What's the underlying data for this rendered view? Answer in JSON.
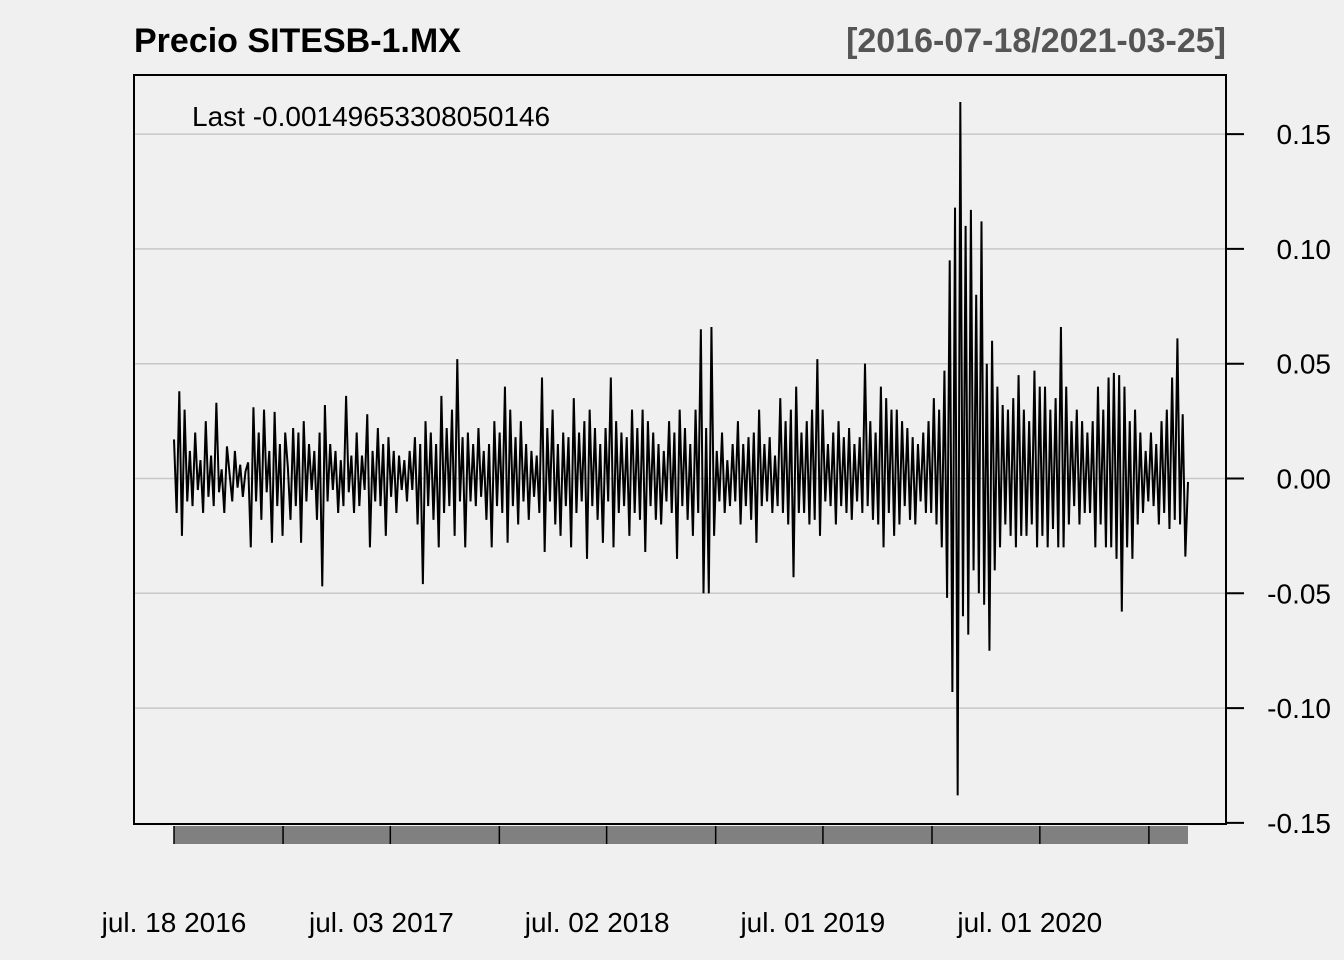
{
  "chart_data": {
    "type": "line",
    "title": "Precio SITESB-1.MX",
    "date_range_label": "[2016-07-18/2021-03-25]",
    "legend_text": "Last -0.00149653308050146",
    "last_value": -0.00149653308050146,
    "x_start": "2016-07-18",
    "x_end": "2021-03-25",
    "x_tick_labels": [
      "jul. 18 2016",
      "jul. 03 2017",
      "jul. 02 2018",
      "jul. 01 2019",
      "jul. 01 2020"
    ],
    "x_tick_dates": [
      "2016-07-18",
      "2017-07-03",
      "2018-07-02",
      "2019-07-01",
      "2020-07-01"
    ],
    "y_ticks": [
      0.15,
      0.1,
      0.05,
      0.0,
      -0.05,
      -0.1,
      -0.15
    ],
    "y_tick_labels": [
      "0.15",
      "0.10",
      "0.05",
      "0.00",
      "-0.05",
      "-0.10",
      "-0.15"
    ],
    "ylim": [
      -0.15,
      0.165
    ],
    "grid": true,
    "grid_color": "#c8c8c8",
    "line_color": "#000000",
    "title_color": "#000000",
    "range_label_color": "#555555",
    "band_color": "#808080",
    "series": [
      {
        "values": [
          0.017,
          -0.015,
          0.038,
          -0.025,
          0.03,
          -0.01,
          0.012,
          -0.012,
          0.02,
          -0.005,
          0.008,
          -0.015,
          0.025,
          -0.008,
          0.01,
          -0.012,
          0.033,
          -0.006,
          0.004,
          -0.015,
          0.014,
          0.002,
          -0.01,
          0.012,
          -0.004,
          0.006,
          -0.008,
          0.003,
          0.007,
          -0.03,
          0.031,
          -0.01,
          0.02,
          -0.018,
          0.03,
          -0.006,
          0.012,
          -0.028,
          0.029,
          -0.012,
          0.015,
          -0.025,
          0.02,
          0.005,
          -0.018,
          0.022,
          -0.012,
          0.02,
          -0.028,
          0.025,
          -0.01,
          0.015,
          -0.005,
          0.012,
          -0.018,
          0.02,
          -0.047,
          0.032,
          -0.01,
          0.015,
          -0.005,
          0.012,
          -0.015,
          0.008,
          -0.012,
          0.036,
          -0.006,
          0.01,
          -0.015,
          0.02,
          -0.012,
          0.01,
          -0.005,
          0.028,
          -0.03,
          0.012,
          -0.01,
          0.022,
          -0.012,
          0.015,
          -0.025,
          0.018,
          -0.008,
          0.012,
          -0.015,
          0.01,
          -0.005,
          0.008,
          -0.01,
          0.012,
          -0.005,
          0.018,
          -0.02,
          0.015,
          -0.046,
          0.025,
          -0.012,
          0.02,
          -0.018,
          0.015,
          -0.03,
          0.036,
          -0.015,
          0.022,
          -0.012,
          0.03,
          -0.025,
          0.052,
          -0.01,
          0.018,
          -0.03,
          0.02,
          -0.01,
          0.015,
          -0.012,
          0.022,
          -0.008,
          0.012,
          -0.018,
          0.015,
          -0.03,
          0.025,
          -0.012,
          0.02,
          -0.015,
          0.04,
          -0.028,
          0.03,
          -0.012,
          0.018,
          -0.02,
          0.025,
          -0.01,
          0.015,
          -0.018,
          0.012,
          -0.008,
          0.01,
          -0.015,
          0.044,
          -0.032,
          0.022,
          -0.01,
          0.03,
          -0.02,
          0.015,
          -0.025,
          0.02,
          -0.012,
          0.018,
          -0.03,
          0.035,
          -0.015,
          0.02,
          -0.01,
          0.025,
          -0.035,
          0.03,
          -0.012,
          0.022,
          -0.018,
          0.015,
          -0.028,
          0.022,
          -0.01,
          0.044,
          -0.03,
          0.025,
          -0.015,
          0.02,
          -0.012,
          0.018,
          -0.025,
          0.03,
          -0.015,
          0.022,
          -0.018,
          0.03,
          -0.032,
          0.025,
          -0.012,
          0.02,
          -0.018,
          0.015,
          -0.02,
          0.012,
          -0.01,
          0.025,
          -0.015,
          0.02,
          -0.035,
          0.03,
          -0.012,
          0.022,
          -0.018,
          0.015,
          -0.025,
          0.03,
          -0.015,
          0.065,
          -0.05,
          0.022,
          -0.05,
          0.066,
          -0.025,
          0.012,
          -0.01,
          0.02,
          -0.015,
          0.008,
          -0.012,
          0.015,
          -0.01,
          0.025,
          -0.02,
          0.015,
          -0.012,
          0.018,
          -0.018,
          0.02,
          -0.028,
          0.03,
          -0.012,
          0.015,
          -0.01,
          0.018,
          -0.015,
          0.01,
          -0.012,
          0.035,
          -0.015,
          0.025,
          -0.02,
          0.03,
          -0.043,
          0.04,
          -0.015,
          0.02,
          -0.015,
          0.025,
          -0.02,
          0.03,
          -0.018,
          0.052,
          -0.025,
          0.03,
          -0.01,
          0.015,
          -0.012,
          0.02,
          -0.02,
          0.025,
          -0.012,
          0.018,
          -0.015,
          0.022,
          -0.018,
          0.015,
          -0.01,
          0.018,
          -0.015,
          0.05,
          -0.012,
          0.025,
          -0.018,
          0.02,
          -0.02,
          0.04,
          -0.03,
          0.035,
          -0.015,
          0.03,
          -0.025,
          0.03,
          -0.02,
          0.025,
          -0.012,
          0.022,
          -0.018,
          0.018,
          -0.02,
          0.015,
          -0.01,
          0.02,
          -0.015,
          0.025,
          -0.015,
          0.035,
          -0.02,
          0.03,
          -0.03,
          0.047,
          -0.052,
          0.095,
          -0.093,
          0.118,
          -0.138,
          0.164,
          -0.06,
          0.11,
          -0.068,
          0.117,
          -0.04,
          0.08,
          -0.05,
          0.112,
          -0.055,
          0.05,
          -0.075,
          0.06,
          -0.04,
          0.04,
          -0.03,
          0.032,
          -0.02,
          0.03,
          -0.025,
          0.035,
          -0.03,
          0.045,
          -0.025,
          0.03,
          -0.025,
          0.025,
          -0.02,
          0.047,
          -0.03,
          0.04,
          -0.025,
          0.04,
          -0.03,
          0.03,
          -0.022,
          0.035,
          -0.03,
          0.066,
          -0.03,
          0.04,
          -0.02,
          0.025,
          -0.012,
          0.03,
          -0.02,
          0.025,
          -0.015,
          0.02,
          -0.015,
          0.025,
          -0.03,
          0.04,
          -0.02,
          0.03,
          -0.03,
          0.044,
          -0.03,
          0.046,
          -0.035,
          0.045,
          -0.058,
          0.04,
          -0.03,
          0.025,
          -0.035,
          0.03,
          -0.02,
          0.02,
          -0.015,
          0.012,
          -0.01,
          0.02,
          -0.012,
          0.015,
          -0.02,
          0.025,
          -0.015,
          0.03,
          -0.022,
          0.044,
          -0.018,
          0.061,
          -0.02,
          0.028,
          -0.034,
          -0.0015
        ]
      }
    ]
  }
}
